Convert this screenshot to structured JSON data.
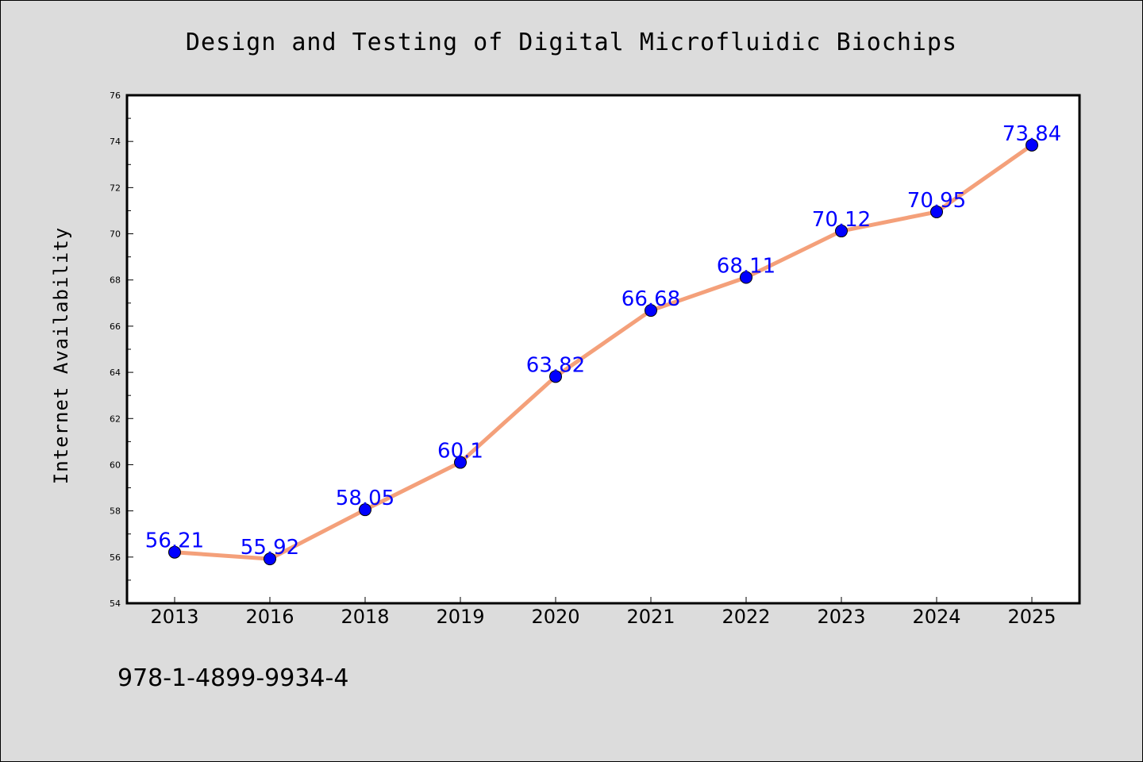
{
  "chart_data": {
    "type": "line",
    "title": "Design and Testing of Digital Microfluidic Biochips",
    "xlabel": "",
    "ylabel": "Internet Availability",
    "categories": [
      "2013",
      "2016",
      "2018",
      "2019",
      "2020",
      "2021",
      "2022",
      "2023",
      "2024",
      "2025"
    ],
    "series": [
      {
        "values": [
          56.21,
          55.92,
          58.05,
          60.1,
          63.82,
          66.68,
          68.11,
          70.12,
          70.95,
          73.84
        ],
        "data_labels": [
          "56.21",
          "55.92",
          "58.05",
          "60.1",
          "63.82",
          "66.68",
          "68.11",
          "70.12",
          "70.95",
          "73.84"
        ]
      }
    ],
    "ylim": [
      54,
      76
    ],
    "yticks": [
      "54",
      "56",
      "58",
      "60",
      "62",
      "64",
      "66",
      "68",
      "70",
      "72",
      "74",
      "76"
    ],
    "grid": false,
    "legend": "none",
    "colors": {
      "line": "#f4a07a",
      "marker": "#0000ff",
      "data_label": "#0000ff",
      "plot_background": "#ffffff",
      "figure_background": "#dcdcdc"
    }
  },
  "footer": {
    "isbn": "978-1-4899-9934-4"
  }
}
